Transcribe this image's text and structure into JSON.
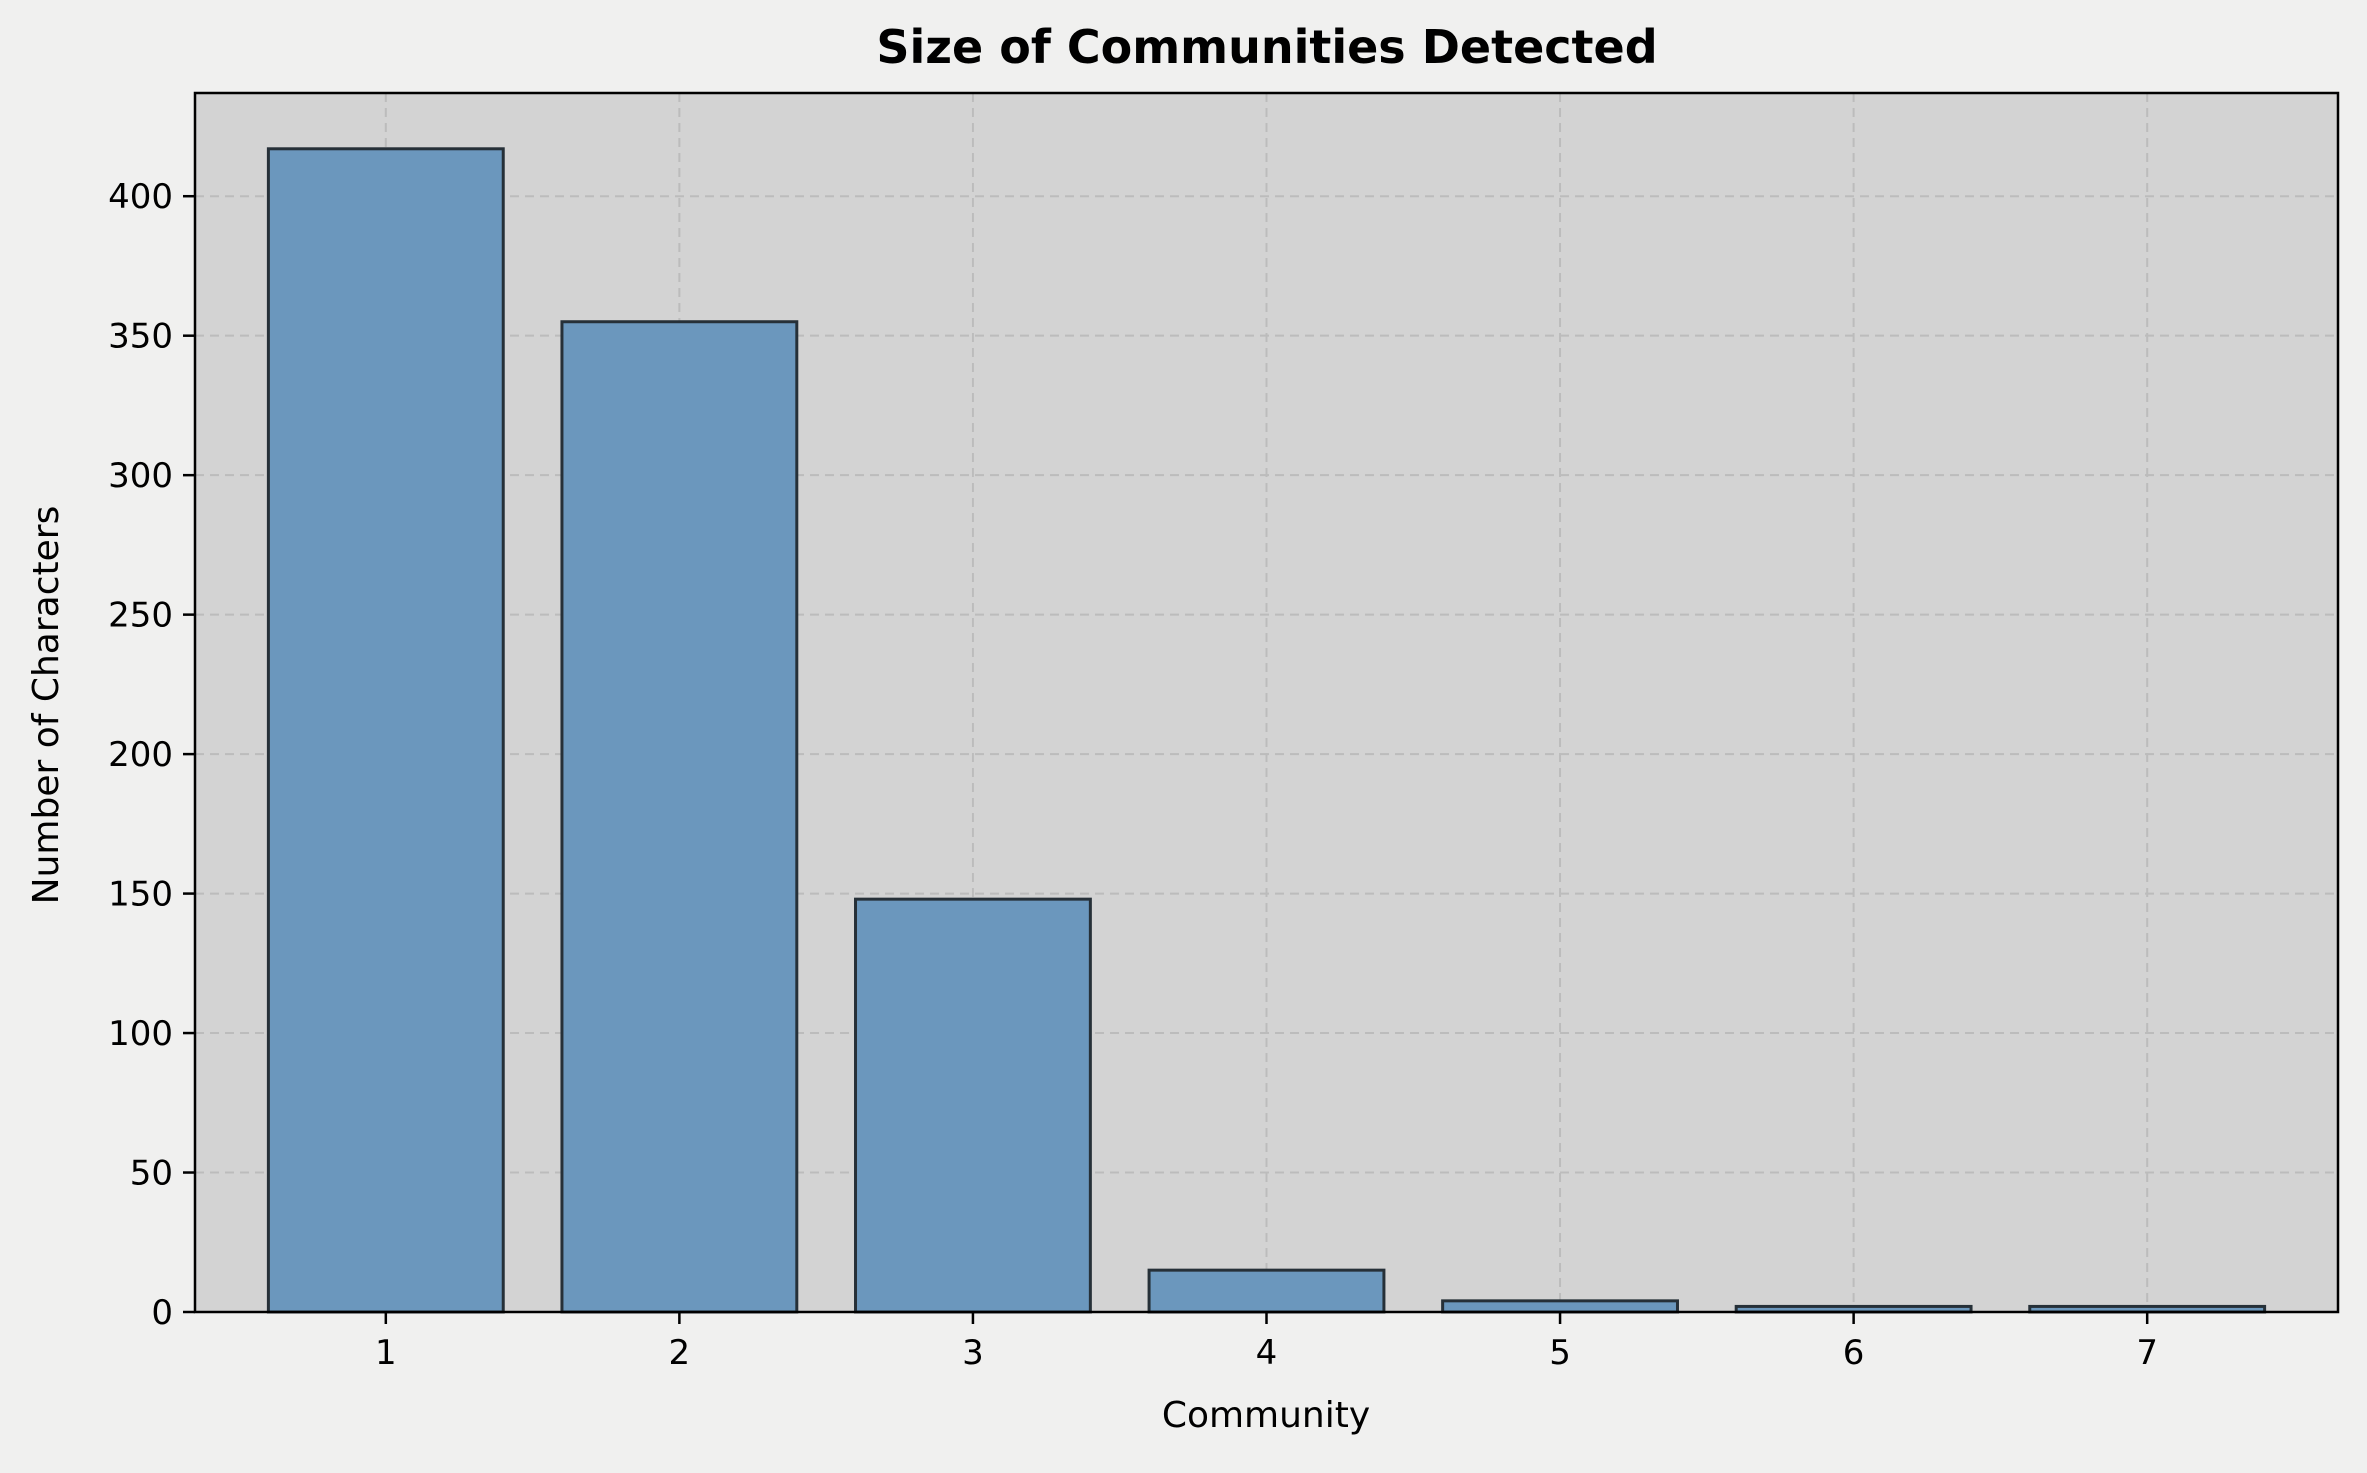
{
  "chart_data": {
    "type": "bar",
    "title": "Size of Communities Detected",
    "xlabel": "Community",
    "ylabel": "Number of Characters",
    "categories": [
      "1",
      "2",
      "3",
      "4",
      "5",
      "6",
      "7"
    ],
    "values": [
      417,
      355,
      148,
      15,
      4,
      2,
      2
    ],
    "ylim": [
      0,
      437
    ],
    "yticks": [
      0,
      50,
      100,
      150,
      200,
      250,
      300,
      350,
      400
    ],
    "grid": true,
    "legend": "none",
    "colors": {
      "figure_background": "#f0f0ef",
      "plot_background": "#d3d3d3",
      "bar_fill": "#6b97bd",
      "bar_edge": "#263038",
      "grid": "#bcbcbc"
    }
  }
}
